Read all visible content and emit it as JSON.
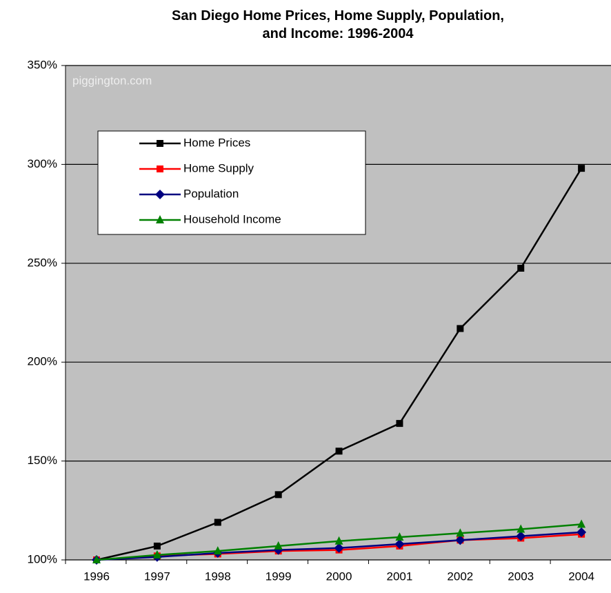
{
  "chart_data": {
    "type": "line",
    "title": "San Diego Home Prices, Home Supply, Population, and Income: 1996-2004",
    "annotation": "piggington.com",
    "categories": [
      "1996",
      "1997",
      "1998",
      "1999",
      "2000",
      "2001",
      "2002",
      "2003",
      "2004"
    ],
    "series": [
      {
        "name": "Home Prices",
        "color": "#000000",
        "marker": "square",
        "values": [
          100,
          107,
          119,
          133,
          155,
          169,
          217,
          247.5,
          298
        ]
      },
      {
        "name": "Home Supply",
        "color": "#ff0000",
        "marker": "square",
        "values": [
          100,
          102,
          103,
          104.5,
          105,
          107,
          110,
          111,
          113
        ]
      },
      {
        "name": "Population",
        "color": "#000080",
        "marker": "diamond",
        "values": [
          100,
          101.5,
          103.5,
          105,
          106,
          108,
          110,
          112,
          114
        ]
      },
      {
        "name": "Household Income",
        "color": "#008000",
        "marker": "triangle",
        "values": [
          100,
          102.5,
          104.5,
          107,
          109.5,
          111.5,
          113.5,
          115.5,
          118
        ]
      }
    ],
    "ylim": [
      100,
      350
    ],
    "yticks": [
      {
        "value": 100,
        "label": "100%"
      },
      {
        "value": 150,
        "label": "150%"
      },
      {
        "value": 200,
        "label": "200%"
      },
      {
        "value": 250,
        "label": "250%"
      },
      {
        "value": 300,
        "label": "300%"
      },
      {
        "value": 350,
        "label": "350%"
      }
    ],
    "grid": true,
    "legend": "upper left"
  }
}
